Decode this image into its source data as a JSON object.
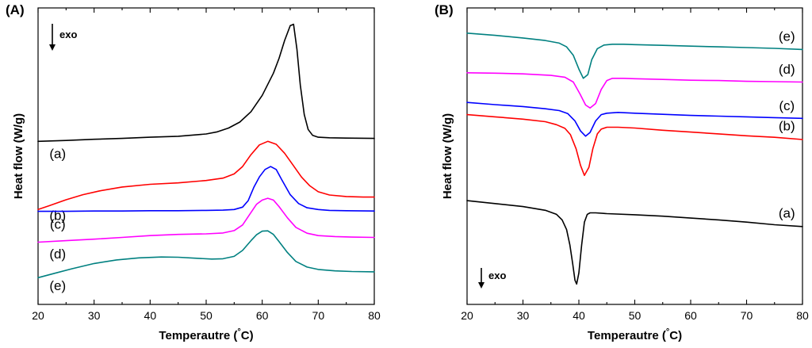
{
  "chart_data": [
    {
      "type": "line",
      "panel_label": "(A)",
      "xlabel": "Temperautre (",
      "xlabel_unit": "°C)",
      "ylabel": "Heat flow (W/g)",
      "xlim": [
        20,
        80
      ],
      "xticks": [
        "20",
        "30",
        "40",
        "50",
        "60",
        "70",
        "80"
      ],
      "yticks": "none",
      "grid": false,
      "annotation": "exo",
      "series": [
        {
          "name": "(a)",
          "color": "#000000",
          "label_x": 23.5,
          "x": [
            20,
            25,
            30,
            35,
            40,
            45,
            50,
            52,
            54,
            56,
            58,
            60,
            62,
            63,
            64,
            65,
            65.6,
            66.2,
            66.8,
            67.5,
            68.2,
            69,
            70,
            72,
            75,
            80
          ],
          "y": [
            7.3,
            7.33,
            7.37,
            7.4,
            7.44,
            7.47,
            7.55,
            7.62,
            7.75,
            7.95,
            8.3,
            8.85,
            9.6,
            10.1,
            10.7,
            11.2,
            11.25,
            10.4,
            9.2,
            8.2,
            7.7,
            7.5,
            7.44,
            7.42,
            7.41,
            7.4
          ]
        },
        {
          "name": "(b)",
          "color": "#ff0000",
          "label_x": 23.5,
          "x": [
            20,
            22,
            25,
            28,
            31,
            35,
            40,
            45,
            50,
            53,
            55,
            56.5,
            58,
            59.5,
            61,
            62.5,
            64,
            65.5,
            67,
            68.5,
            70,
            72,
            75,
            78,
            80
          ],
          "y": [
            5.0,
            5.13,
            5.33,
            5.5,
            5.63,
            5.76,
            5.85,
            5.9,
            5.98,
            6.06,
            6.2,
            6.45,
            6.85,
            7.18,
            7.3,
            7.2,
            6.9,
            6.5,
            6.1,
            5.8,
            5.6,
            5.49,
            5.44,
            5.42,
            5.42
          ]
        },
        {
          "name": "(c)",
          "color": "#0000ff",
          "label_x": 23.5,
          "x": [
            20,
            25,
            30,
            35,
            40,
            45,
            50,
            53,
            55,
            56.5,
            57.5,
            58.5,
            59.5,
            60.5,
            61.5,
            62.5,
            63.5,
            65,
            66.5,
            68,
            70,
            72,
            75,
            80
          ],
          "y": [
            4.94,
            4.94,
            4.95,
            4.95,
            4.96,
            4.96,
            4.97,
            4.98,
            5.0,
            5.08,
            5.3,
            5.75,
            6.1,
            6.35,
            6.45,
            6.35,
            6.0,
            5.5,
            5.2,
            5.06,
            5.0,
            4.97,
            4.96,
            4.95
          ]
        },
        {
          "name": "(d)",
          "color": "#ff00ff",
          "label_x": 23.5,
          "x": [
            20,
            25,
            30,
            35,
            40,
            45,
            50,
            53,
            55,
            56.5,
            58,
            59,
            60,
            61,
            62,
            63,
            64.5,
            66,
            68,
            70,
            73,
            76,
            80
          ],
          "y": [
            3.9,
            3.95,
            4.0,
            4.06,
            4.12,
            4.16,
            4.18,
            4.21,
            4.29,
            4.48,
            4.9,
            5.18,
            5.32,
            5.38,
            5.32,
            5.1,
            4.72,
            4.4,
            4.2,
            4.12,
            4.09,
            4.07,
            4.06
          ]
        },
        {
          "name": "(e)",
          "color": "#008080",
          "label_x": 23.5,
          "x": [
            20,
            23,
            26,
            30,
            34,
            38,
            42,
            45,
            48,
            51,
            53,
            55,
            56.5,
            58,
            59,
            60,
            61,
            62,
            63,
            64.5,
            66,
            68,
            70,
            73,
            76,
            80
          ],
          "y": [
            2.7,
            2.85,
            3.0,
            3.18,
            3.3,
            3.37,
            3.4,
            3.39,
            3.36,
            3.33,
            3.34,
            3.42,
            3.62,
            3.95,
            4.15,
            4.27,
            4.28,
            4.16,
            3.92,
            3.55,
            3.25,
            3.06,
            2.98,
            2.93,
            2.91,
            2.9
          ]
        }
      ]
    },
    {
      "type": "line",
      "panel_label": "(B)",
      "xlabel": "Temperautre (",
      "xlabel_unit": "°C)",
      "ylabel": "Heat flow (W/g)",
      "xlim": [
        20,
        80
      ],
      "xticks": [
        "20",
        "30",
        "40",
        "50",
        "60",
        "70",
        "80"
      ],
      "yticks": "none",
      "grid": false,
      "annotation": "exo",
      "series": [
        {
          "name": "(a)",
          "color": "#000000",
          "label_x": 77.2,
          "x": [
            20,
            25,
            30,
            34,
            36,
            37,
            37.8,
            38.4,
            38.9,
            39.3,
            39.6,
            40,
            40.5,
            41,
            41.5,
            42,
            43,
            45,
            50,
            55,
            60,
            65,
            70,
            75,
            80
          ],
          "y": [
            2.4,
            2.32,
            2.24,
            2.14,
            2.03,
            1.88,
            1.62,
            1.2,
            0.7,
            0.25,
            0.15,
            0.45,
            1.2,
            1.82,
            2.03,
            2.07,
            2.07,
            2.05,
            2.02,
            1.98,
            1.93,
            1.88,
            1.82,
            1.75,
            1.7
          ]
        },
        {
          "name": "(b)",
          "color": "#ff0000",
          "label_x": 77.2,
          "x": [
            20,
            25,
            30,
            34,
            36,
            37.5,
            38.5,
            39.5,
            40.3,
            41,
            41.8,
            42.5,
            43.3,
            44,
            45,
            47,
            50,
            55,
            60,
            65,
            70,
            75,
            80
          ],
          "y": [
            4.72,
            4.66,
            4.6,
            4.53,
            4.45,
            4.35,
            4.18,
            3.8,
            3.35,
            3.08,
            3.3,
            3.8,
            4.2,
            4.33,
            4.38,
            4.38,
            4.36,
            4.3,
            4.25,
            4.2,
            4.15,
            4.11,
            4.05
          ]
        },
        {
          "name": "(c)",
          "color": "#0000ff",
          "label_x": 77.2,
          "x": [
            20,
            25,
            30,
            34,
            36.5,
            38,
            39.3,
            40.3,
            41.2,
            42,
            43,
            44,
            45,
            47,
            50,
            55,
            60,
            65,
            70,
            75,
            80
          ],
          "y": [
            5.05,
            4.99,
            4.94,
            4.88,
            4.83,
            4.75,
            4.55,
            4.28,
            4.14,
            4.24,
            4.55,
            4.72,
            4.76,
            4.78,
            4.76,
            4.73,
            4.7,
            4.68,
            4.66,
            4.64,
            4.62
          ]
        },
        {
          "name": "(d)",
          "color": "#ff00ff",
          "label_x": 77.2,
          "x": [
            20,
            25,
            30,
            35,
            37.5,
            39,
            40.2,
            41.2,
            42,
            43,
            44,
            45,
            46,
            48,
            50,
            55,
            60,
            65,
            70,
            75,
            80
          ],
          "y": [
            5.85,
            5.84,
            5.82,
            5.78,
            5.73,
            5.6,
            5.28,
            4.98,
            4.9,
            5.02,
            5.4,
            5.64,
            5.7,
            5.7,
            5.69,
            5.67,
            5.65,
            5.64,
            5.62,
            5.61,
            5.6
          ]
        },
        {
          "name": "(e)",
          "color": "#008080",
          "label_x": 77.2,
          "x": [
            20,
            25,
            30,
            34,
            36.5,
            37.8,
            39,
            40,
            40.8,
            41.6,
            42.3,
            43.3,
            44.5,
            46,
            48,
            50,
            55,
            60,
            65,
            70,
            75,
            80
          ],
          "y": [
            6.92,
            6.86,
            6.79,
            6.72,
            6.65,
            6.55,
            6.32,
            5.95,
            5.7,
            5.8,
            6.2,
            6.5,
            6.6,
            6.62,
            6.62,
            6.61,
            6.59,
            6.57,
            6.55,
            6.53,
            6.51,
            6.48
          ]
        }
      ]
    }
  ]
}
